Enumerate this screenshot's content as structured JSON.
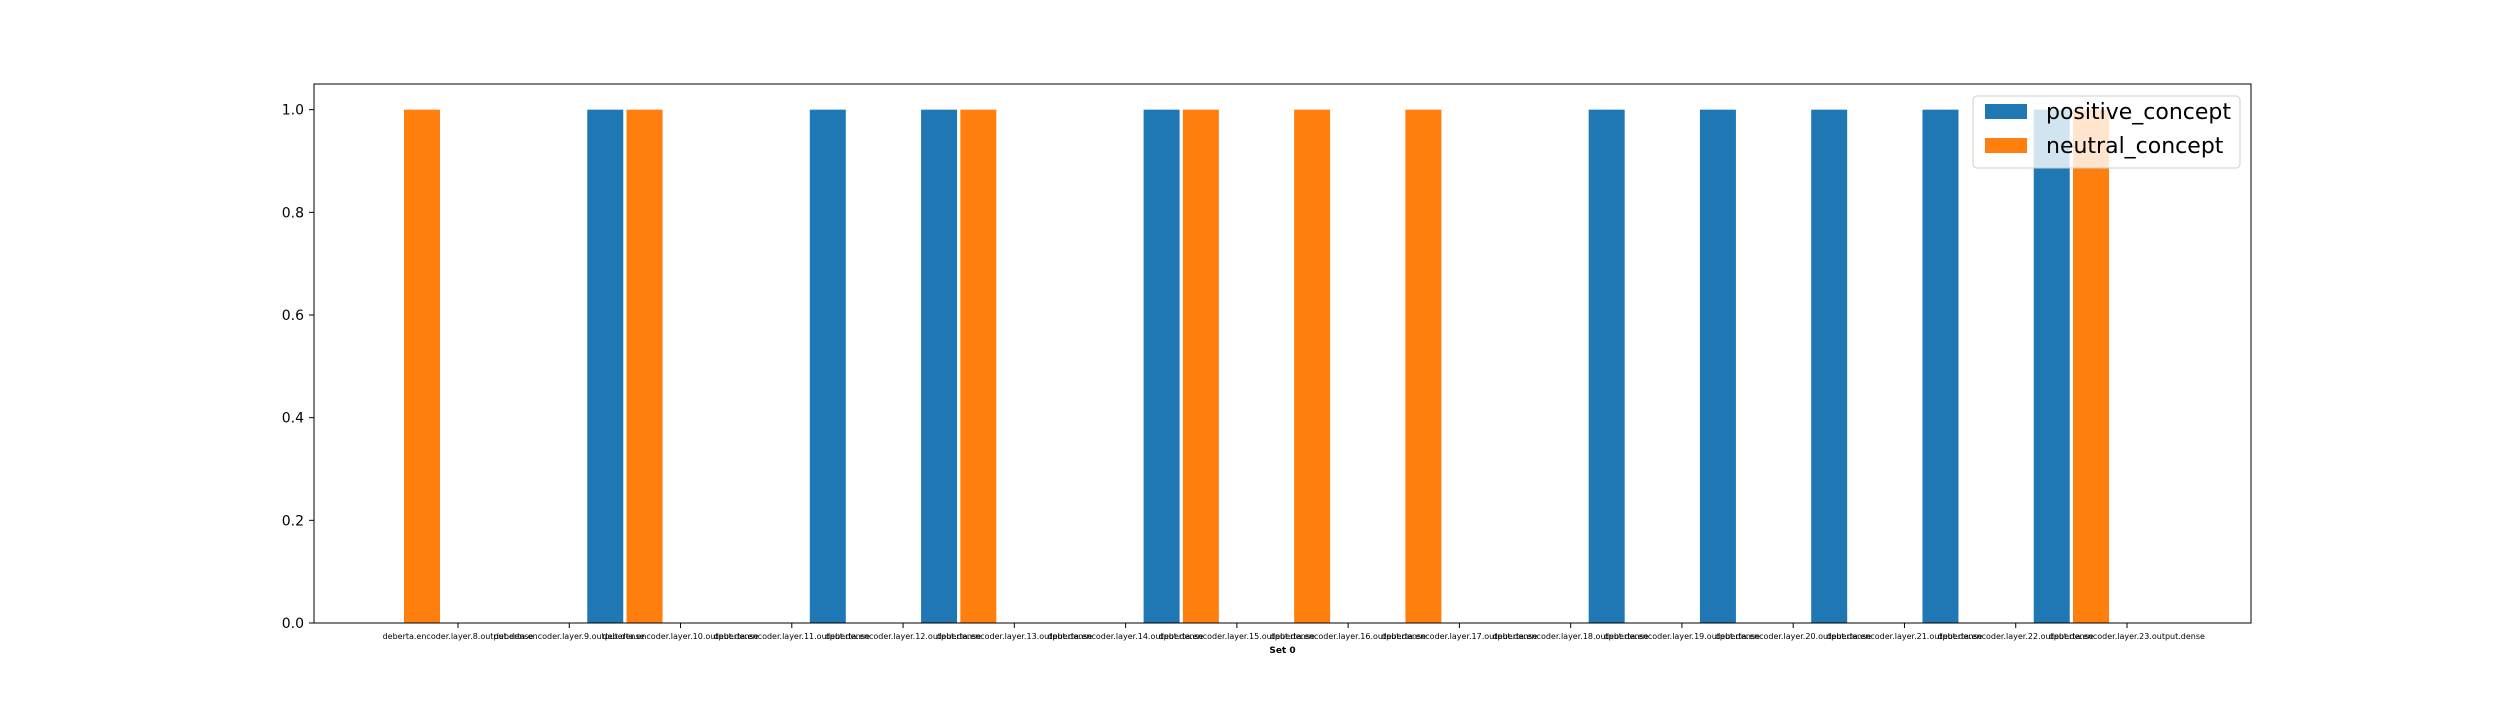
{
  "chart_data": {
    "type": "bar",
    "title": "",
    "xlabel": "Set 0",
    "ylabel": "",
    "ylim": [
      0,
      1.05
    ],
    "yticks": [
      0.0,
      0.2,
      0.4,
      0.6,
      0.8,
      1.0
    ],
    "ytick_labels": [
      "0.0",
      "0.2",
      "0.4",
      "0.6",
      "0.8",
      "1.0"
    ],
    "categories": [
      "deberta.encoder.layer.8.output.dense",
      "deberta.encoder.layer.9.output.dense",
      "deberta.encoder.layer.10.output.dense",
      "deberta.encoder.layer.11.output.dense",
      "deberta.encoder.layer.12.output.dense",
      "deberta.encoder.layer.13.output.dense",
      "deberta.encoder.layer.14.output.dense",
      "deberta.encoder.layer.15.output.dense",
      "deberta.encoder.layer.16.output.dense",
      "deberta.encoder.layer.17.output.dense",
      "deberta.encoder.layer.18.output.dense",
      "deberta.encoder.layer.19.output.dense",
      "deberta.encoder.layer.20.output.dense",
      "deberta.encoder.layer.21.output.dense",
      "deberta.encoder.layer.22.output.dense",
      "deberta.encoder.layer.23.output.dense"
    ],
    "series": [
      {
        "name": "positive_concept",
        "color": "#1f77b4",
        "values": [
          0,
          1,
          0,
          1,
          1,
          0,
          1,
          0,
          0,
          0,
          1,
          1,
          1,
          1,
          1,
          0
        ]
      },
      {
        "name": "neutral_concept",
        "color": "#ff7f0e",
        "values": [
          1,
          0,
          1,
          0,
          0,
          1,
          0,
          1,
          1,
          1,
          0,
          0,
          0,
          0,
          0,
          1
        ]
      }
    ],
    "grid": false,
    "legend_position": "top-right"
  }
}
